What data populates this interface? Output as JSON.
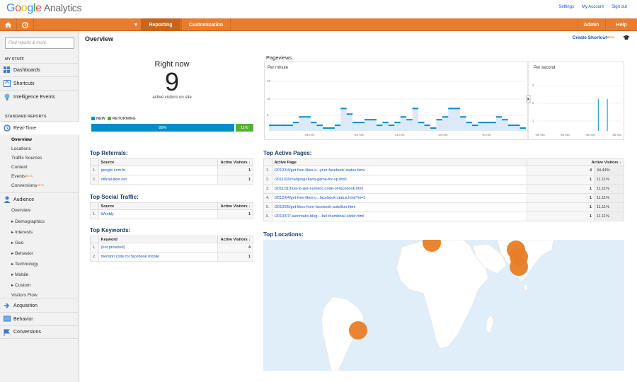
{
  "header": {
    "logo_google": "Google",
    "logo_analytics": "Analytics",
    "links": [
      "Settings",
      "My Account",
      "Sign out"
    ]
  },
  "topnav": {
    "tabs": [
      "Reporting",
      "Customization"
    ],
    "right": [
      "Admin",
      "Help"
    ]
  },
  "sidebar": {
    "search_placeholder": "Find reports & more",
    "my_stuff": "MY STUFF",
    "my_items": [
      "Dashboards",
      "Shortcuts",
      "Intelligence Events"
    ],
    "standard_reports": "STANDARD REPORTS",
    "realtime": "Real-Time",
    "realtime_items": [
      "Overview",
      "Locations",
      "Traffic Sources",
      "Content",
      "Events",
      "Conversions"
    ],
    "beta": "BETA",
    "audience": "Audience",
    "audience_items": [
      "Overview",
      "▸ Demographics",
      "▸ Interests",
      "▸ Geo",
      "▸ Behavior",
      "▸ Technology",
      "▸ Mobile",
      "▸ Custom",
      "Visitors Flow"
    ],
    "bottom_items": [
      "Acquisition",
      "Behavior",
      "Conversions"
    ]
  },
  "main": {
    "title": "Overview",
    "create_shortcut": "Create Shortcut",
    "beta": "BETA",
    "right_now": "Right now",
    "active_count": "9",
    "active_label": "active visitors on site",
    "legend_new": "NEW",
    "legend_returning": "RETURNING",
    "new_pct": "89%",
    "returning_pct": "11%",
    "new_fraction": 0.89,
    "pageviews_title": "Pageviews",
    "per_minute": "Per minute",
    "per_second": "Per second",
    "minute_yticks": [
      "15",
      "10",
      "5"
    ],
    "minute_xticks": [
      "-25 min",
      "-20 min",
      "-15 min",
      "-10 min",
      "-5 min"
    ],
    "second_yticks": [
      "3",
      "2",
      "1"
    ],
    "second_xticks": [
      "-60 sec",
      "-45 sec",
      "-30 sec",
      "-15 sec"
    ],
    "top_referrals": "Top Referrals:",
    "referrals_headers": [
      "Source",
      "Active Visitors"
    ],
    "referrals": [
      {
        "idx": "1.",
        "name": "google.com.br",
        "val": "1"
      },
      {
        "idx": "2.",
        "name": "official-liker.net",
        "val": "1"
      }
    ],
    "top_social": "Top Social Traffic:",
    "social_headers": [
      "Source",
      "Active Visitors"
    ],
    "social": [
      {
        "idx": "1.",
        "name": "Weebly",
        "val": "1"
      }
    ],
    "top_keywords": "Top Keywords:",
    "keywords_headers": [
      "Keyword",
      "Active Visitors"
    ],
    "keywords": [
      {
        "idx": "1.",
        "name": "(not provided)",
        "val": "4"
      },
      {
        "idx": "2.",
        "name": "mention code for facebook mobile",
        "val": "1"
      }
    ],
    "top_pages": "Top Active Pages:",
    "pages_headers": [
      "Active Page",
      "Active Visitors"
    ],
    "pages": [
      {
        "idx": "1.",
        "name": "/2012/04/get-free-likes-o...your-facebook-status.html",
        "val": "4",
        "pct": "44.44%"
      },
      {
        "idx": "2.",
        "name": "/2011/02/mahjong-titans-game-for-vp.html",
        "val": "1",
        "pct": "11.11%"
      },
      {
        "idx": "3.",
        "name": "/2011/11/how-to-get-numeric-code-of-facebook.html",
        "val": "1",
        "pct": "11.11%"
      },
      {
        "idx": "4.",
        "name": "/2012/04/get-free-likes-o...facebook-status.html?m=1",
        "val": "1",
        "pct": "11.11%"
      },
      {
        "idx": "5.",
        "name": "/2013/05/get-likes-from-facebook-autoliker.html",
        "val": "1",
        "pct": "11.11%"
      },
      {
        "idx": "6.",
        "name": "/2013/07/-automatic-blog-...bel-thumbnail-slider.html",
        "val": "1",
        "pct": "11.11%"
      }
    ],
    "top_locations": "Top Locations:"
  },
  "chart_data": [
    {
      "type": "bar",
      "series": [
        {
          "values": [
            2,
            2,
            2,
            2,
            3,
            5,
            5,
            3,
            2,
            1,
            1,
            2,
            8,
            6,
            3,
            3,
            4,
            4,
            2,
            3,
            2,
            3,
            5,
            4,
            8,
            3,
            2,
            1,
            4,
            5,
            8,
            8,
            5,
            3,
            2,
            3,
            3,
            3,
            5,
            4,
            2,
            2,
            1
          ]
        }
      ],
      "ylim": [
        0,
        20
      ]
    },
    {
      "type": "bar",
      "series": [
        {
          "values": [
            0,
            0,
            0,
            0,
            0,
            0,
            0,
            0,
            0,
            0,
            0,
            0,
            0,
            0,
            0,
            0,
            0,
            0,
            0,
            0,
            0,
            0,
            0,
            0,
            0,
            0,
            0,
            0,
            0,
            0,
            0,
            0,
            0,
            0,
            0,
            0,
            0,
            0,
            0,
            0,
            0,
            0,
            0,
            0,
            0,
            0,
            0,
            0,
            0,
            0,
            0,
            0,
            0,
            0,
            0,
            0,
            0,
            0,
            2,
            0,
            0,
            0,
            0,
            0,
            0,
            0,
            2,
            0,
            0,
            0,
            0,
            0,
            0,
            0,
            0,
            0,
            0,
            0,
            0
          ]
        }
      ],
      "ylim": [
        0,
        3.5
      ]
    }
  ],
  "colors": {
    "new": "#058dc7",
    "returning": "#50b432",
    "accent": "#e97d2f",
    "bubble": "#e87d26"
  }
}
